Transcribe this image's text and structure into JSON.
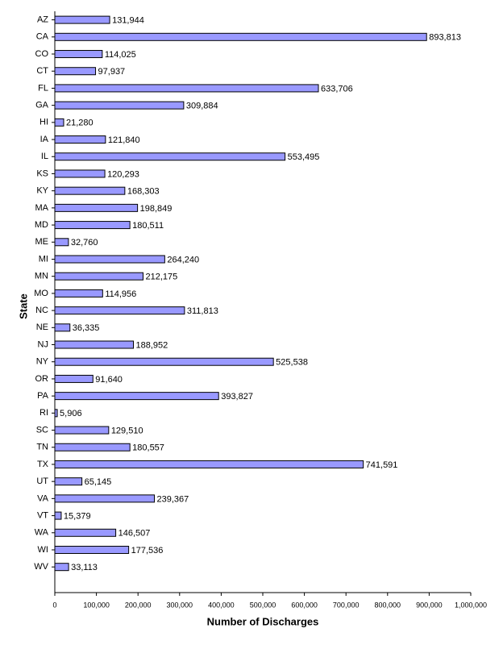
{
  "chart_data": {
    "type": "bar",
    "orientation": "horizontal",
    "x_label": "Number of Discharges",
    "y_label": "State",
    "categories": [
      "AZ",
      "CA",
      "CO",
      "CT",
      "FL",
      "GA",
      "HI",
      "IA",
      "IL",
      "KS",
      "KY",
      "MA",
      "MD",
      "ME",
      "MI",
      "MN",
      "MO",
      "NC",
      "NE",
      "NJ",
      "NY",
      "OR",
      "PA",
      "RI",
      "SC",
      "TN",
      "TX",
      "UT",
      "VA",
      "VT",
      "WA",
      "WI",
      "WV"
    ],
    "values": [
      131944,
      893813,
      114025,
      97937,
      633706,
      309884,
      21280,
      121840,
      553495,
      120293,
      168303,
      198849,
      180511,
      32760,
      264240,
      212175,
      114956,
      311813,
      36335,
      188952,
      525538,
      91640,
      393827,
      5906,
      129510,
      180557,
      741591,
      65145,
      239367,
      15379,
      146507,
      177536,
      33113
    ],
    "value_labels": [
      "131,944",
      "893,813",
      "114,025",
      "97,937",
      "633,706",
      "309,884",
      "21,280",
      "121,840",
      "553,495",
      "120,293",
      "168,303",
      "198,849",
      "180,511",
      "32,760",
      "264,240",
      "212,175",
      "114,956",
      "311,813",
      "36,335",
      "188,952",
      "525,538",
      "91,640",
      "393,827",
      "5,906",
      "129,510",
      "180,557",
      "741,591",
      "65,145",
      "239,367",
      "15,379",
      "146,507",
      "177,536",
      "33,113"
    ],
    "color": "#9999ff",
    "xlim": [
      0,
      1000000
    ],
    "xticks": [
      0,
      {
        "value": 100000,
        "label": "100,000"
      },
      {
        "value": 200000,
        "label": "200,000"
      },
      {
        "value": 300000,
        "label": "300,000"
      },
      {
        "value": 400000,
        "label": "400,000"
      },
      {
        "value": 500000,
        "label": "500,000"
      },
      {
        "value": 600000,
        "label": "600,000"
      },
      {
        "value": 700000,
        "label": "700,000"
      },
      {
        "value": 800000,
        "label": "800,000"
      },
      {
        "value": 900000,
        "label": "900,000"
      },
      {
        "value": 1000000,
        "label": "1,000,000"
      }
    ]
  }
}
